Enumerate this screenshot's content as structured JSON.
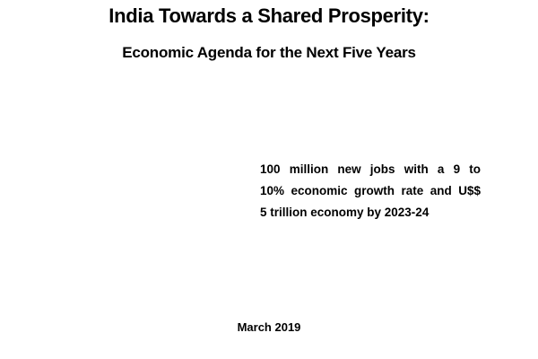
{
  "document": {
    "title": "India Towards a Shared Prosperity:",
    "subtitle": "Economic Agenda for the Next Five Years",
    "summary_lines": [
      "100 million new jobs with a 9 to",
      "10% economic growth rate and U$$",
      "5 trillion economy by 2023-24"
    ],
    "date": "March 2019"
  }
}
